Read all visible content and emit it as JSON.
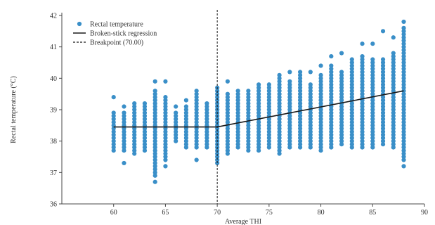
{
  "chart_data": {
    "type": "scatter",
    "xlabel": "Average THI",
    "ylabel": "Rectal temperature (°C)",
    "xlim": [
      55,
      90
    ],
    "ylim": [
      36,
      42
    ],
    "xticks": [
      60,
      65,
      70,
      75,
      80,
      85,
      90
    ],
    "yticks": [
      36,
      37,
      38,
      39,
      40,
      41,
      42
    ],
    "legend": {
      "placement": "top-left",
      "entries": [
        {
          "label": "Rectal temperature",
          "kind": "marker"
        },
        {
          "label": "Broken-stick regression",
          "kind": "solid-line"
        },
        {
          "label": "Breakpoint (70.00)",
          "kind": "dashed-line"
        }
      ]
    },
    "colors": {
      "points": "#3a8fc8",
      "regression": "#1a1a1a",
      "breakpoint": "#1a1a1a"
    },
    "series": [
      {
        "name": "Rectal temperature",
        "columns": [
          {
            "x": 60,
            "min": 37.7,
            "max": 38.9,
            "outliers": [
              39.4
            ]
          },
          {
            "x": 61,
            "min": 37.7,
            "max": 38.9,
            "outliers": [
              37.3,
              39.1
            ]
          },
          {
            "x": 62,
            "min": 37.6,
            "max": 39.2,
            "outliers": []
          },
          {
            "x": 63,
            "min": 37.7,
            "max": 39.2,
            "outliers": []
          },
          {
            "x": 64,
            "min": 36.9,
            "max": 39.6,
            "outliers": [
              36.7,
              39.9
            ]
          },
          {
            "x": 65,
            "min": 37.4,
            "max": 39.4,
            "outliers": [
              37.2,
              39.9
            ]
          },
          {
            "x": 66,
            "min": 38.0,
            "max": 38.9,
            "outliers": [
              39.1
            ]
          },
          {
            "x": 67,
            "min": 37.8,
            "max": 39.0,
            "outliers": [
              39.1,
              39.3
            ]
          },
          {
            "x": 68,
            "min": 37.8,
            "max": 39.6,
            "outliers": [
              37.4
            ]
          },
          {
            "x": 69,
            "min": 37.8,
            "max": 39.2,
            "outliers": []
          },
          {
            "x": 70,
            "min": 37.3,
            "max": 39.7,
            "outliers": []
          },
          {
            "x": 71,
            "min": 37.6,
            "max": 39.5,
            "outliers": [
              39.9
            ]
          },
          {
            "x": 72,
            "min": 37.8,
            "max": 39.6,
            "outliers": []
          },
          {
            "x": 73,
            "min": 37.7,
            "max": 39.6,
            "outliers": []
          },
          {
            "x": 74,
            "min": 37.7,
            "max": 39.7,
            "outliers": [
              39.8
            ]
          },
          {
            "x": 75,
            "min": 37.8,
            "max": 39.8,
            "outliers": []
          },
          {
            "x": 76,
            "min": 37.6,
            "max": 40.1,
            "outliers": []
          },
          {
            "x": 77,
            "min": 37.8,
            "max": 39.9,
            "outliers": [
              40.2
            ]
          },
          {
            "x": 78,
            "min": 37.8,
            "max": 40.2,
            "outliers": []
          },
          {
            "x": 79,
            "min": 37.8,
            "max": 39.8,
            "outliers": [
              40.2
            ]
          },
          {
            "x": 80,
            "min": 37.7,
            "max": 40.1,
            "outliers": [
              40.4
            ]
          },
          {
            "x": 81,
            "min": 37.8,
            "max": 40.4,
            "outliers": [
              40.7
            ]
          },
          {
            "x": 82,
            "min": 37.9,
            "max": 40.2,
            "outliers": [
              40.8
            ]
          },
          {
            "x": 83,
            "min": 37.8,
            "max": 40.6,
            "outliers": []
          },
          {
            "x": 84,
            "min": 37.8,
            "max": 40.7,
            "outliers": [
              41.1
            ]
          },
          {
            "x": 85,
            "min": 37.8,
            "max": 40.6,
            "outliers": [
              41.1
            ]
          },
          {
            "x": 86,
            "min": 37.9,
            "max": 40.6,
            "outliers": [
              41.5
            ]
          },
          {
            "x": 87,
            "min": 37.8,
            "max": 40.8,
            "outliers": [
              41.3
            ]
          },
          {
            "x": 88,
            "min": 37.4,
            "max": 41.6,
            "outliers": [
              37.2,
              41.8
            ]
          }
        ]
      }
    ],
    "regression": {
      "name": "Broken-stick regression",
      "points": [
        [
          60,
          38.45
        ],
        [
          70,
          38.45
        ],
        [
          88,
          39.6
        ]
      ]
    },
    "breakpoint": {
      "name": "Breakpoint (70.00)",
      "x": 70
    }
  }
}
